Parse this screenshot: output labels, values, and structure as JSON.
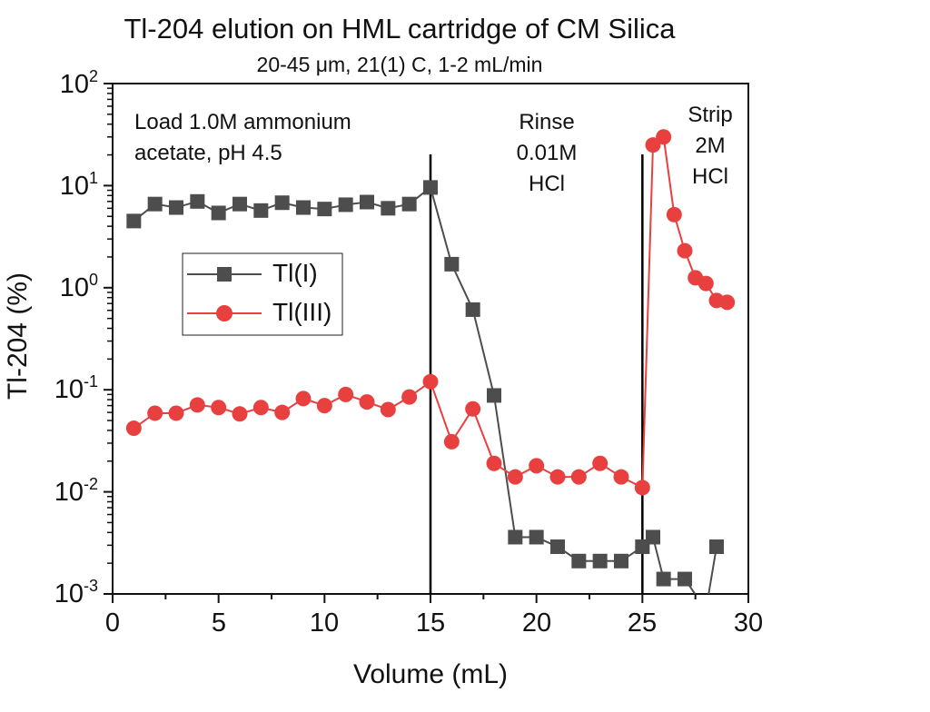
{
  "chart_data": {
    "type": "line",
    "title": "Tl-204 elution on HML cartridge of CM Silica",
    "subtitle": "20-45 μm, 21(1) C, 1-2 mL/min",
    "xlabel": "Volume (mL)",
    "ylabel": "Tl-204 (%)",
    "xlim": [
      0,
      30
    ],
    "ylim": [
      0.001,
      100
    ],
    "yscale": "log",
    "x_ticks": [
      "0",
      "5",
      "10",
      "15",
      "20",
      "25",
      "30"
    ],
    "y_ticks": [
      {
        "base": "10",
        "exp": "2",
        "value": 100
      },
      {
        "base": "10",
        "exp": "1",
        "value": 10
      },
      {
        "base": "10",
        "exp": "0",
        "value": 1
      },
      {
        "base": "10",
        "exp": "-1",
        "value": 0.1
      },
      {
        "base": "10",
        "exp": "-2",
        "value": 0.01
      },
      {
        "base": "10",
        "exp": "-3",
        "value": 0.001
      }
    ],
    "annotations": {
      "load": [
        "Load 1.0M ammonium",
        "acetate, pH 4.5"
      ],
      "rinse": [
        "Rinse",
        "0.01M",
        "HCl"
      ],
      "strip": [
        "Strip",
        "2M",
        "HCl"
      ]
    },
    "vlines": [
      15,
      25
    ],
    "legend": "center-left",
    "series": [
      {
        "name": "Tl(I)",
        "color": "#4d4d4d",
        "marker": "square",
        "x": [
          1,
          2,
          3,
          4,
          5,
          6,
          7,
          8,
          9,
          10,
          11,
          12,
          13,
          14,
          15,
          16,
          17,
          18,
          19,
          20,
          21,
          22,
          23,
          24,
          25,
          25.5,
          26,
          27,
          28,
          28.5
        ],
        "y": [
          4.5,
          6.6,
          6.1,
          7.0,
          5.4,
          6.6,
          5.7,
          6.8,
          6.1,
          5.9,
          6.5,
          6.9,
          6.0,
          6.6,
          9.6,
          1.7,
          0.61,
          0.088,
          0.0036,
          0.0036,
          0.0029,
          0.0021,
          0.0021,
          0.0021,
          0.0029,
          0.0036,
          0.0014,
          0.0014,
          0.0007,
          0.0029
        ]
      },
      {
        "name": "Tl(III)",
        "color": "#e8403f",
        "marker": "circle",
        "x": [
          1,
          2,
          3,
          4,
          5,
          6,
          7,
          8,
          9,
          10,
          11,
          12,
          13,
          14,
          15,
          16,
          17,
          18,
          19,
          20,
          21,
          22,
          23,
          24,
          25,
          25.5,
          26,
          26.5,
          27,
          27.5,
          28,
          28.5,
          29
        ],
        "y": [
          0.042,
          0.059,
          0.059,
          0.071,
          0.067,
          0.058,
          0.067,
          0.06,
          0.082,
          0.07,
          0.09,
          0.076,
          0.064,
          0.085,
          0.12,
          0.031,
          0.065,
          0.019,
          0.014,
          0.018,
          0.014,
          0.014,
          0.019,
          0.014,
          0.011,
          25,
          30,
          5.2,
          2.3,
          1.25,
          1.1,
          0.75,
          0.72
        ]
      }
    ]
  }
}
